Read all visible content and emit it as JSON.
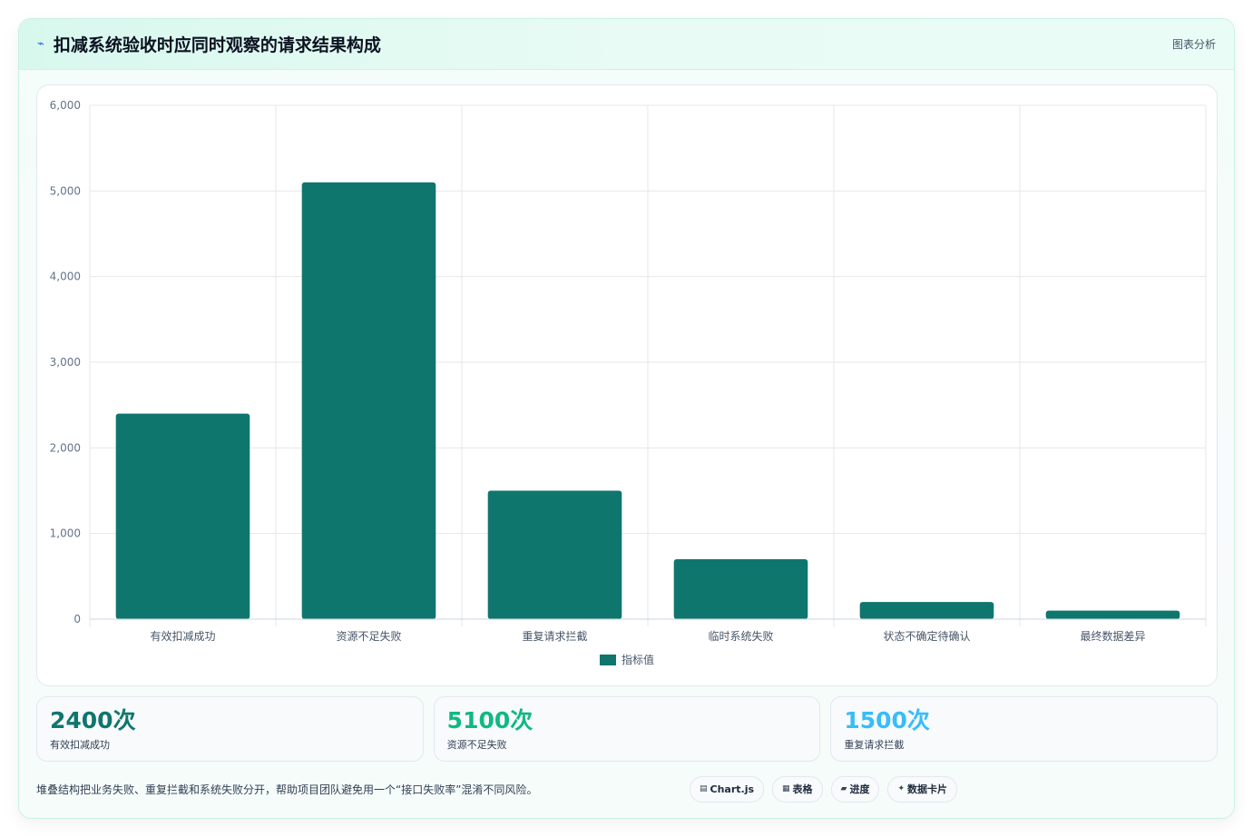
{
  "header": {
    "icon": "sparkline-icon",
    "title": "扣减系统验收时应同时观察的请求结果构成",
    "tag": "图表分析"
  },
  "chart_data": {
    "type": "bar",
    "categories": [
      "有效扣减成功",
      "资源不足失败",
      "重复请求拦截",
      "临时系统失败",
      "状态不确定待确认",
      "最终数据差异"
    ],
    "series": [
      {
        "name": "指标值",
        "values": [
          2400,
          5100,
          1500,
          700,
          200,
          100
        ]
      }
    ],
    "ylim": [
      0,
      6000
    ],
    "yticks": [
      "0",
      "1,000",
      "2,000",
      "3,000",
      "4,000",
      "5,000",
      "6,000"
    ],
    "grid": true,
    "legend": "bottom",
    "bar_color": "#0f766e"
  },
  "kpis": [
    {
      "value": "2400次",
      "label": "有效扣减成功",
      "color": "#0f766e"
    },
    {
      "value": "5100次",
      "label": "资源不足失败",
      "color": "#10b981"
    },
    {
      "value": "1500次",
      "label": "重复请求拦截",
      "color": "#38bdf8"
    }
  ],
  "footer": {
    "note": "堆叠结构把业务失败、重复拦截和系统失败分开，帮助项目团队避免用一个“接口失败率”混淆不同风险。",
    "chips": [
      {
        "icon": "chart-icon",
        "glyph": "▤",
        "label": "Chart.js"
      },
      {
        "icon": "table-icon",
        "glyph": "▦",
        "label": "表格"
      },
      {
        "icon": "progress-icon",
        "glyph": "▰",
        "label": "进度"
      },
      {
        "icon": "card-icon",
        "glyph": "✦",
        "label": "数据卡片"
      }
    ]
  }
}
